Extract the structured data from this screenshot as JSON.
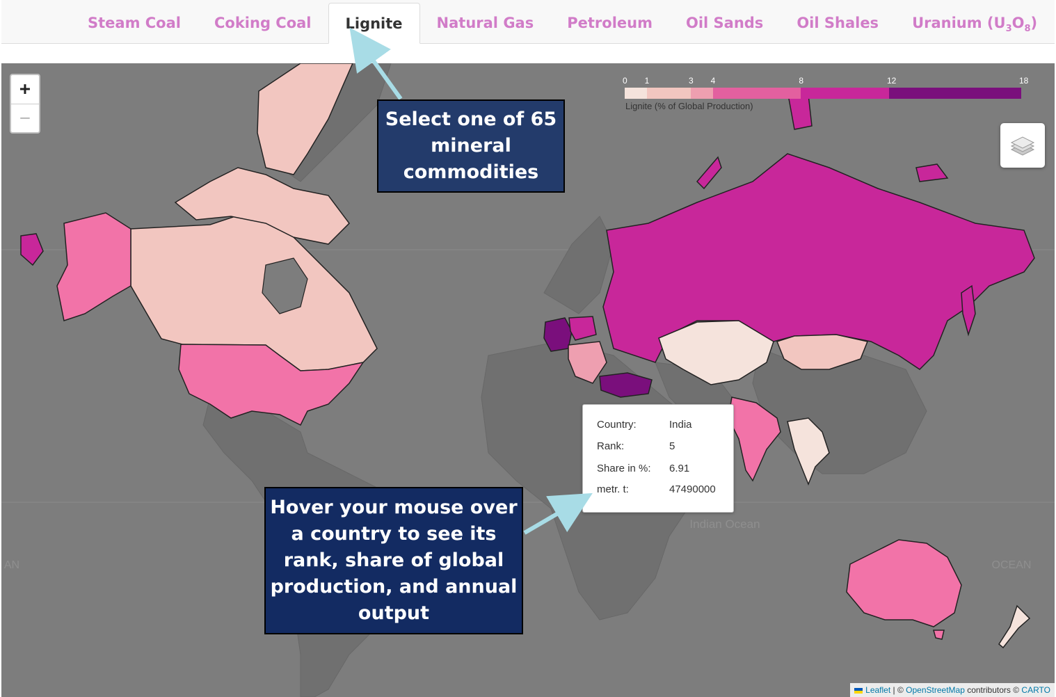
{
  "tabs": [
    {
      "label": "Steam Coal",
      "active": false
    },
    {
      "label": "Coking Coal",
      "active": false
    },
    {
      "label": "Lignite",
      "active": true
    },
    {
      "label": "Natural Gas",
      "active": false
    },
    {
      "label": "Petroleum",
      "active": false
    },
    {
      "label": "Oil Sands",
      "active": false
    },
    {
      "label": "Oil Shales",
      "active": false
    },
    {
      "label": "Uranium (U",
      "sub1": "3",
      "mid": "O",
      "sub2": "8",
      "end": ")",
      "active": false
    }
  ],
  "zoom": {
    "in_label": "+",
    "out_label": "−"
  },
  "layers_icon": "layers-icon",
  "legend": {
    "title": "Lignite (% of Global Production)",
    "ticks": [
      "0",
      "1",
      "3",
      "4",
      "8",
      "12",
      "18"
    ],
    "tick_values": [
      0,
      1,
      3,
      4,
      8,
      12,
      18
    ],
    "colors": [
      "#f5e3dc",
      "#f2c6c0",
      "#ee9fb0",
      "#e3609f",
      "#c8279a",
      "#7a0f7c"
    ]
  },
  "tooltip": {
    "country_label": "Country:",
    "country": "India",
    "rank_label": "Rank:",
    "rank": "5",
    "share_label": "Share in %:",
    "share": "6.91",
    "output_label": "metr. t:",
    "output": "47490000"
  },
  "map_labels": {
    "indian_ocean": "Indian Ocean",
    "ocean_right": "OCEAN",
    "ocean_left": "AN"
  },
  "attribution": {
    "leaflet": "Leaflet",
    "sep1": " | © ",
    "osm": "OpenStreetMap",
    "contrib": " contributors © ",
    "carto": "CARTO"
  },
  "callouts": {
    "select": "Select one of 65 mineral commodities",
    "hover": "Hover your mouse over a country to see its rank, share of global production, and annual output"
  },
  "colors": {
    "accent_tab": "#d17cc8",
    "callout_bg": "#1a2f60",
    "arrow": "#a8dce6",
    "map_bg": "#7d7d7d"
  }
}
